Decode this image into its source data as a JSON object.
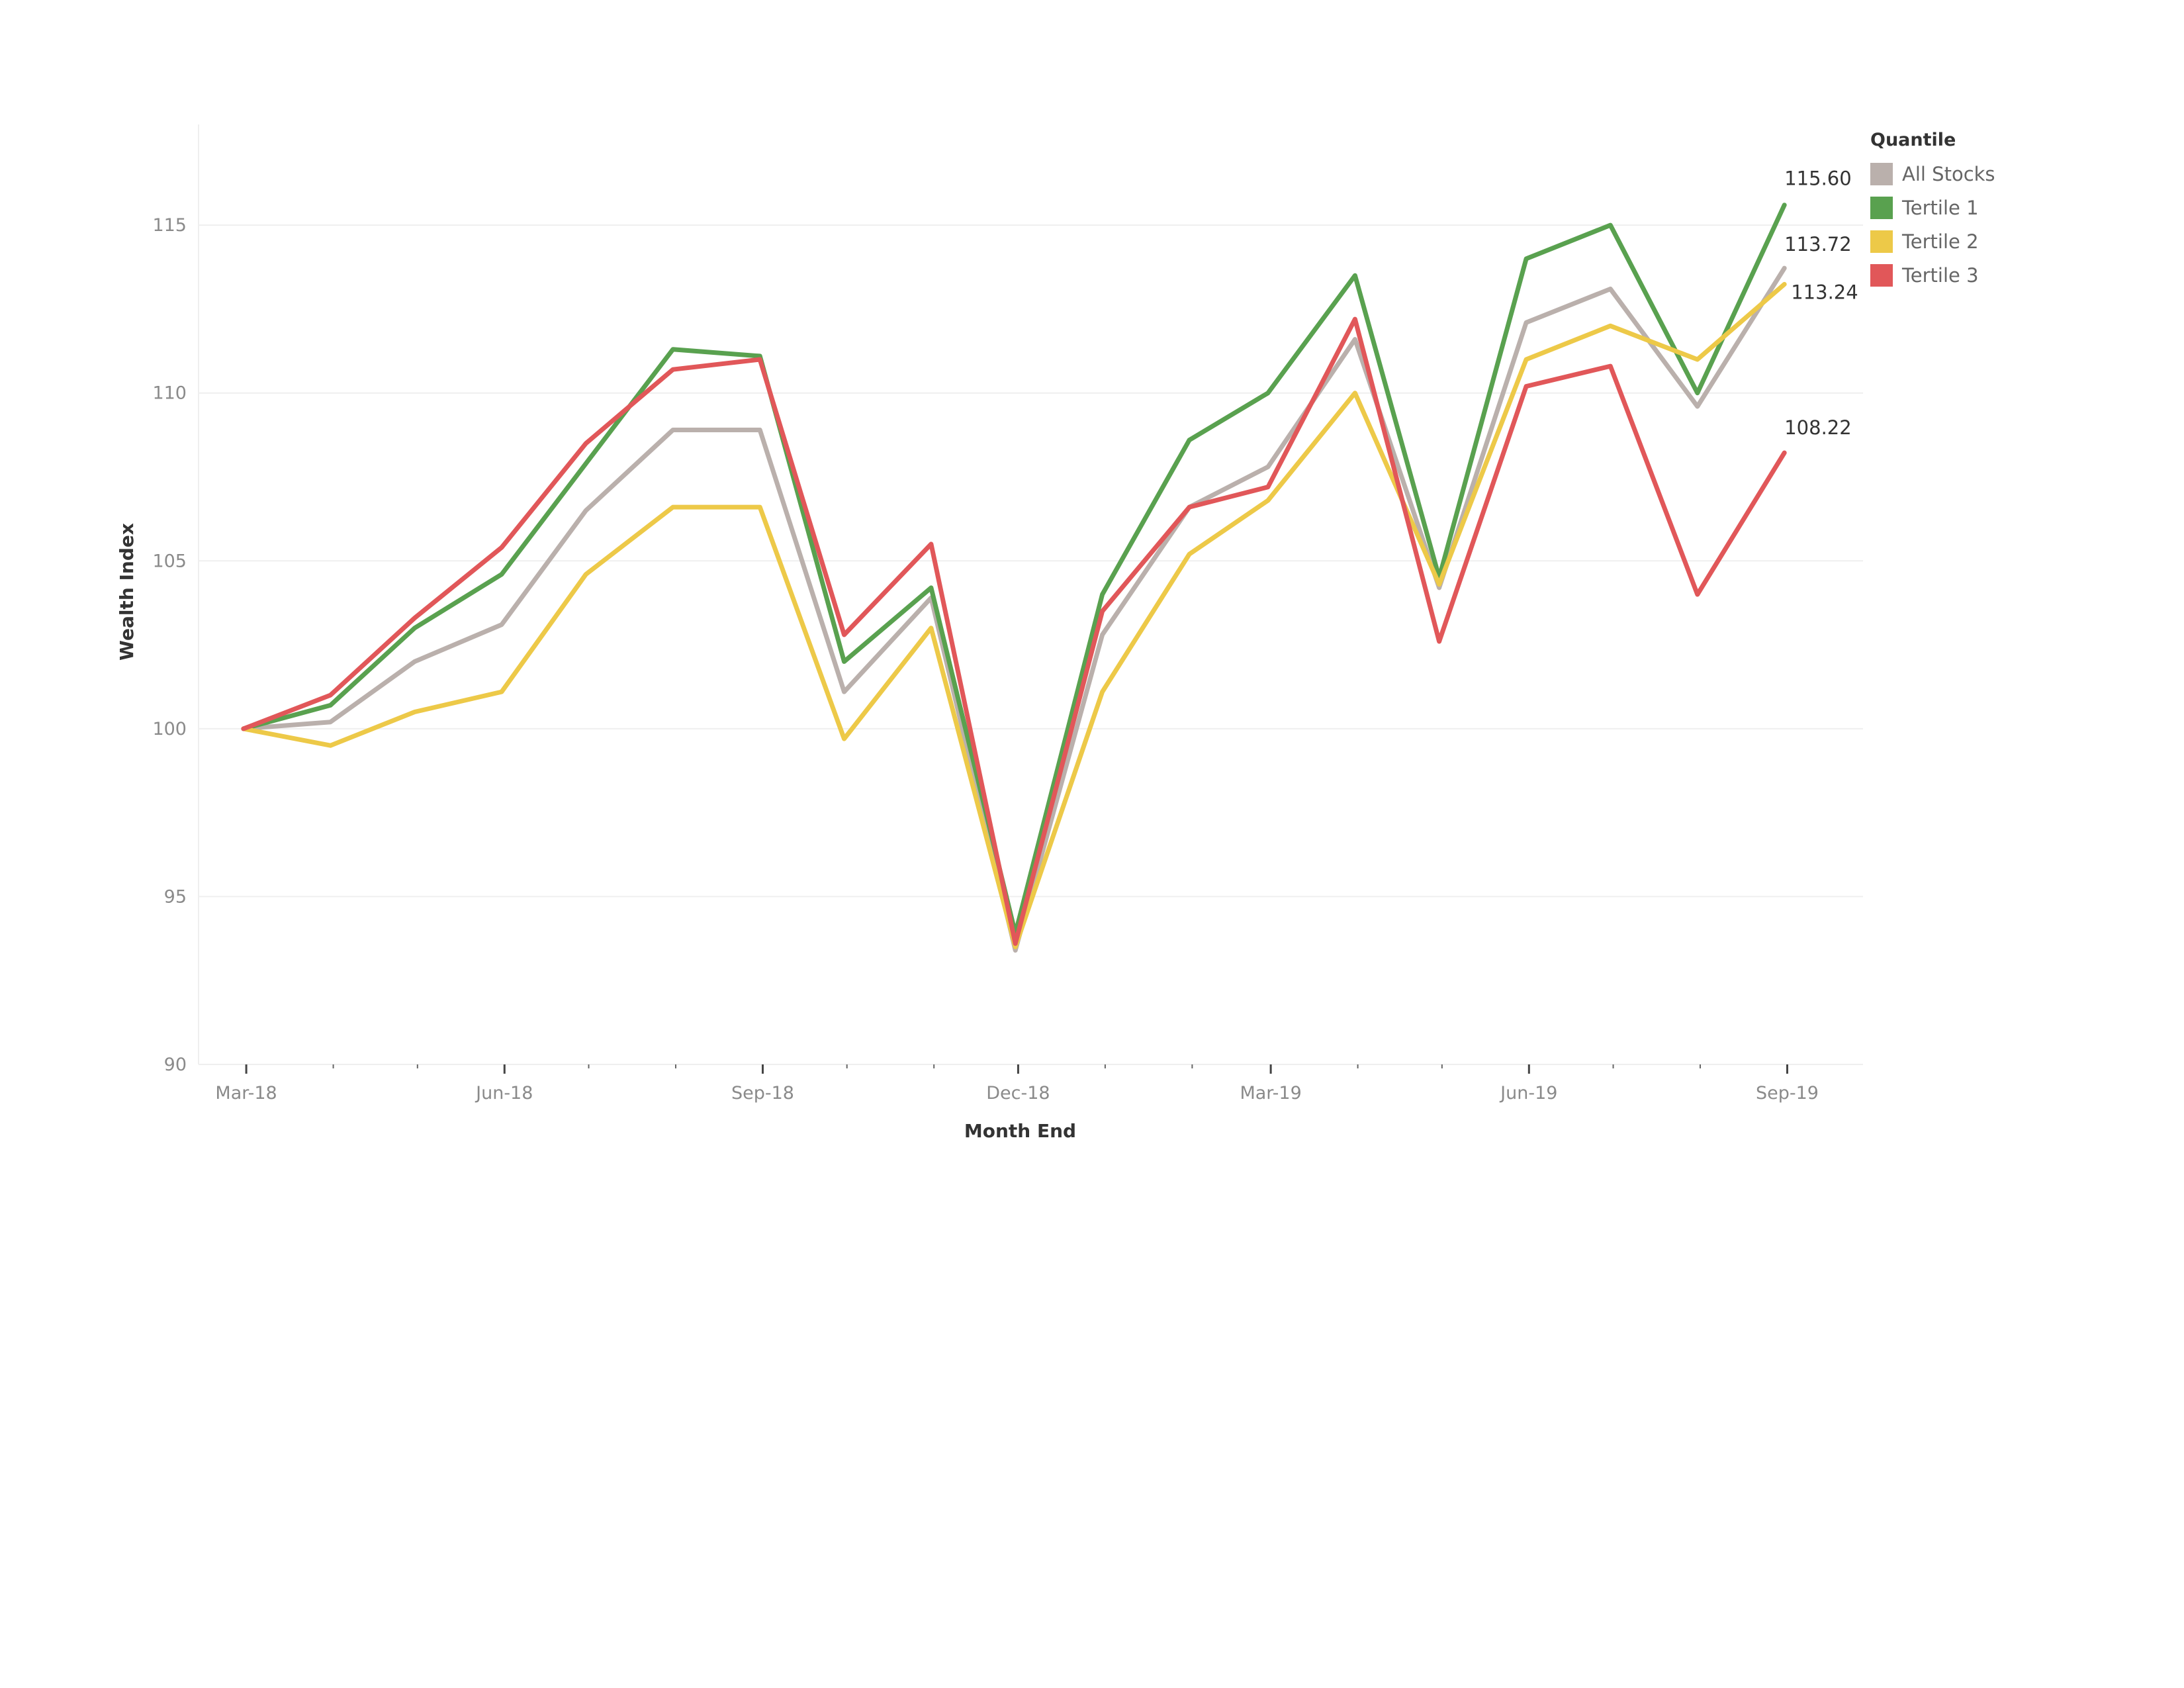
{
  "chart_data": {
    "type": "line",
    "title": "",
    "xlabel": "Month End",
    "ylabel": "Wealth Index",
    "ylim": [
      90,
      118
    ],
    "yticks": [
      90,
      95,
      100,
      105,
      110,
      115
    ],
    "x": [
      "2018-02-28",
      "2018-03-31",
      "2018-04-30",
      "2018-05-31",
      "2018-06-30",
      "2018-07-31",
      "2018-08-31",
      "2018-09-30",
      "2018-10-31",
      "2018-11-30",
      "2018-12-31",
      "2019-01-31",
      "2019-02-28",
      "2019-03-31",
      "2019-04-30",
      "2019-05-31",
      "2019-06-30",
      "2019-07-31",
      "2019-08-31"
    ],
    "x_tick_labels": [
      "Mar-18",
      "Jun-18",
      "Sep-18",
      "Dec-18",
      "Mar-19",
      "Jun-19",
      "Sep-19"
    ],
    "grid": "horizontal",
    "legend": {
      "title": "Quantile",
      "position": "top-right"
    },
    "series": [
      {
        "name": "All Stocks",
        "color": "#bab0ac",
        "values": [
          100.0,
          100.2,
          102.0,
          103.1,
          106.5,
          108.9,
          108.9,
          101.1,
          103.9,
          93.4,
          102.8,
          106.6,
          107.8,
          111.6,
          104.2,
          112.1,
          113.1,
          109.6,
          113.72
        ],
        "end_label": "113.72"
      },
      {
        "name": "Tertile 1",
        "color": "#59a14f",
        "values": [
          100.0,
          100.7,
          103.0,
          104.6,
          107.9,
          111.3,
          111.1,
          102.0,
          104.2,
          93.9,
          104.0,
          108.6,
          110.0,
          113.5,
          104.5,
          114.0,
          115.0,
          110.0,
          115.6
        ],
        "end_label": "115.60"
      },
      {
        "name": "Tertile 2",
        "color": "#edc948",
        "values": [
          100.0,
          99.5,
          100.5,
          101.1,
          104.6,
          106.6,
          106.6,
          99.7,
          103.0,
          93.5,
          101.1,
          105.2,
          106.8,
          110.0,
          104.3,
          111.0,
          112.0,
          111.0,
          113.24
        ],
        "end_label": "113.24"
      },
      {
        "name": "Tertile 3",
        "color": "#e15759",
        "values": [
          100.0,
          101.0,
          103.3,
          105.4,
          108.5,
          110.7,
          111.0,
          102.8,
          105.5,
          93.6,
          103.5,
          106.6,
          107.2,
          112.2,
          102.6,
          110.2,
          110.8,
          104.0,
          108.22
        ],
        "end_label": "108.22"
      }
    ]
  }
}
